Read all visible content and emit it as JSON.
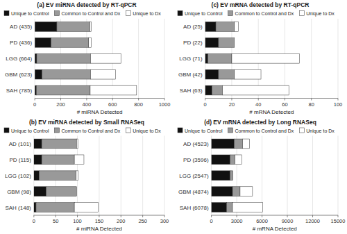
{
  "chart_data": [
    {
      "type": "bar",
      "orientation": "horizontal",
      "stacked": true,
      "grid": true,
      "legend": "upper left",
      "title": "(a) EV miRNA detected by RT-qPCR",
      "xlabel": "# miRNA Detected",
      "xlim": [
        0,
        1000
      ],
      "xticks": [
        0,
        200,
        400,
        600,
        800,
        1000
      ],
      "categories": [
        "AD (435)",
        "PD (436)",
        "LGG (664)",
        "GBM (623)",
        "SAH (785)"
      ],
      "series": [
        {
          "name": "Unique to Control",
          "color": "#111111",
          "values": [
            170,
            125,
            15,
            55,
            12
          ]
        },
        {
          "name": "Common to Control and Dx",
          "color": "#999999",
          "values": [
            255,
            290,
            415,
            375,
            415
          ]
        },
        {
          "name": "Unique to Dx",
          "color": "#ffffff",
          "values": [
            10,
            21,
            234,
            193,
            358
          ]
        }
      ]
    },
    {
      "type": "bar",
      "orientation": "horizontal",
      "stacked": true,
      "grid": true,
      "legend": "upper left",
      "title": "(c) EV mRNA detected by RT-qPCR",
      "xlabel": "# mRNA Detected",
      "xlim": [
        0,
        100
      ],
      "xticks": [
        0,
        20,
        40,
        60,
        80,
        100
      ],
      "categories": [
        "AD (25)",
        "PD (22)",
        "LGG (71)",
        "GBM (42)",
        "SAH (63)"
      ],
      "series": [
        {
          "name": "Unique to Control",
          "color": "#111111",
          "values": [
            8,
            10,
            2,
            10,
            5
          ]
        },
        {
          "name": "Common to Control and Dx",
          "color": "#999999",
          "values": [
            14,
            12,
            18,
            12,
            8
          ]
        },
        {
          "name": "Unique to Dx",
          "color": "#ffffff",
          "values": [
            3,
            0,
            51,
            20,
            50
          ]
        }
      ]
    },
    {
      "type": "bar",
      "orientation": "horizontal",
      "stacked": true,
      "grid": true,
      "legend": "upper left",
      "title": "(b) EV miRNA detected by Small RNASeq",
      "xlabel": "# miRNA Detected",
      "xlim": [
        0,
        300
      ],
      "xticks": [
        0,
        50,
        100,
        150,
        200,
        250,
        300
      ],
      "categories": [
        "AD (101)",
        "PD (115)",
        "LGG (102)",
        "GBM (98)",
        "SAH (148)"
      ],
      "series": [
        {
          "name": "Unique to Control",
          "color": "#111111",
          "values": [
            18,
            18,
            12,
            28,
            5
          ]
        },
        {
          "name": "Common to Control and Dx",
          "color": "#999999",
          "values": [
            80,
            75,
            85,
            70,
            88
          ]
        },
        {
          "name": "Unique to Dx",
          "color": "#ffffff",
          "values": [
            3,
            22,
            5,
            0,
            55
          ]
        }
      ]
    },
    {
      "type": "bar",
      "orientation": "horizontal",
      "stacked": true,
      "grid": true,
      "legend": "upper left",
      "title": "(d) EV mRNA detected by Long RNASeq",
      "xlabel": "# mRNA Detected",
      "xlim": [
        0,
        15000
      ],
      "xticks": [
        0,
        3000,
        6000,
        9000,
        12000,
        15000
      ],
      "categories": [
        "AD (4523)",
        "PD (3596)",
        "LGG (2547)",
        "GBM (4874)",
        "SAH (6078)"
      ],
      "series": [
        {
          "name": "Unique to Control",
          "color": "#111111",
          "values": [
            2700,
            2200,
            2200,
            2500,
            1800
          ]
        },
        {
          "name": "Common to Control and Dx",
          "color": "#999999",
          "values": [
            1000,
            600,
            350,
            900,
            700
          ]
        },
        {
          "name": "Unique to Dx",
          "color": "#ffffff",
          "values": [
            800,
            800,
            0,
            1474,
            3578
          ]
        }
      ]
    }
  ]
}
